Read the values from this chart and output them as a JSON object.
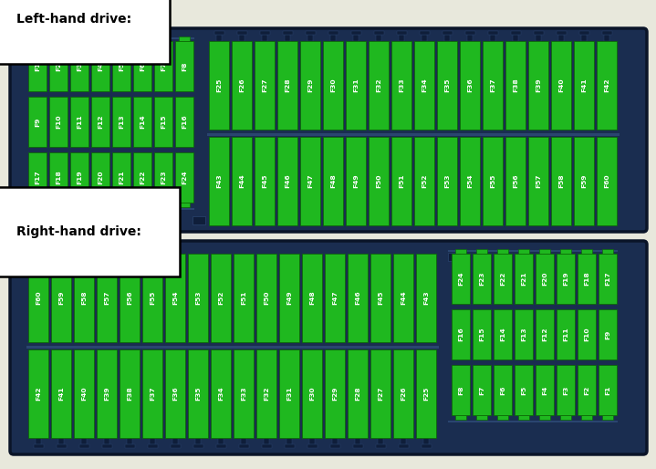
{
  "panel_bg": "#e8e8dc",
  "box_bg": "#1a2d50",
  "box_border": "#0a1428",
  "fuse_green": "#1fb81f",
  "fuse_border": "#0a6600",
  "fuse_text": "#ffffff",
  "conn_color": "#0f1e3a",
  "inner_border": "#2a4570",
  "title_lhd": "Left-hand drive:",
  "title_rhd": "Right-hand drive:",
  "lhd_left_rows": [
    [
      "F1",
      "F2",
      "F3",
      "F4",
      "F5",
      "F6",
      "F7",
      "F8"
    ],
    [
      "F9",
      "F10",
      "F11",
      "F12",
      "F13",
      "F14",
      "F15",
      "F16"
    ],
    [
      "F17",
      "F18",
      "F19",
      "F20",
      "F21",
      "F22",
      "F23",
      "F24"
    ]
  ],
  "lhd_right_top": [
    "F25",
    "F26",
    "F27",
    "F28",
    "F29",
    "F30",
    "F31",
    "F32",
    "F33",
    "F34",
    "F35",
    "F36",
    "F37",
    "F38",
    "F39",
    "F40",
    "F41",
    "F42"
  ],
  "lhd_right_bot": [
    "F43",
    "F44",
    "F45",
    "F46",
    "F47",
    "F48",
    "F49",
    "F50",
    "F51",
    "F52",
    "F53",
    "F54",
    "F55",
    "F56",
    "F57",
    "F58",
    "F59",
    "F60"
  ],
  "rhd_left_top": [
    "F60",
    "F59",
    "F58",
    "F57",
    "F56",
    "F55",
    "F54",
    "F53",
    "F52",
    "F51",
    "F50",
    "F49",
    "F48",
    "F47",
    "F46",
    "F45",
    "F44",
    "F43"
  ],
  "rhd_left_bot": [
    "F42",
    "F41",
    "F40",
    "F39",
    "F38",
    "F37",
    "F36",
    "F35",
    "F34",
    "F33",
    "F32",
    "F31",
    "F30",
    "F29",
    "F28",
    "F27",
    "F26",
    "F25"
  ],
  "rhd_right_rows": [
    [
      "F24",
      "F23",
      "F22",
      "F21",
      "F20",
      "F19",
      "F18",
      "F17"
    ],
    [
      "F16",
      "F15",
      "F14",
      "F13",
      "F12",
      "F11",
      "F10",
      "F9"
    ],
    [
      "F8",
      "F7",
      "F6",
      "F5",
      "F4",
      "F3",
      "F2",
      "F1"
    ]
  ]
}
